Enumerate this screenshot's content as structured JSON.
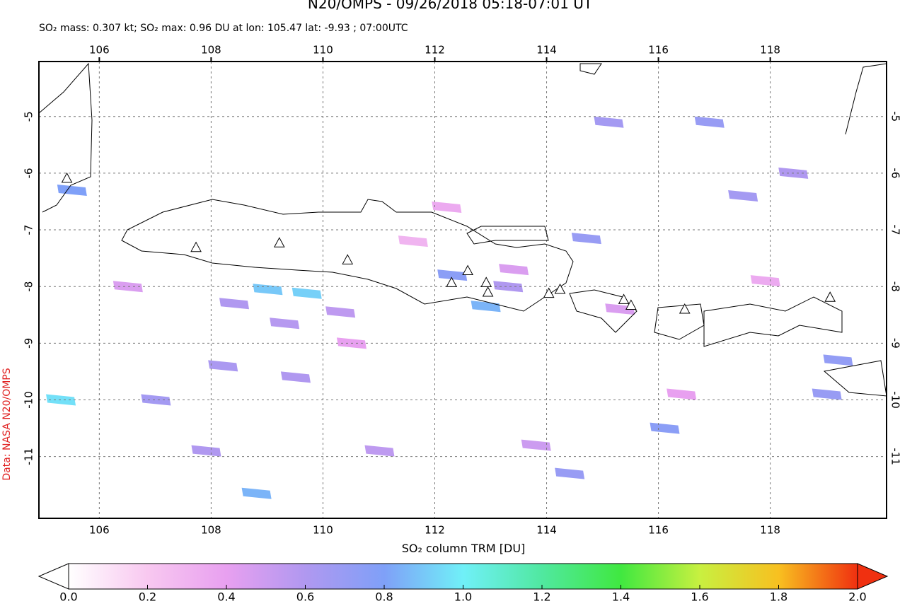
{
  "chart_data": {
    "type": "map",
    "title": "N20/OMPS - 09/26/2018 05:18-07:01 UT",
    "subtitle": "SO₂ mass: 0.307 kt; SO₂ max: 0.96 DU at lon: 105.47 lat: -9.93 ; 07:00UTC",
    "credit": "Data: NASA N20/OMPS",
    "colorbar_label": "SO₂ column TRM [DU]",
    "xlim": [
      104.92,
      120.08
    ],
    "ylim": [
      -12.09,
      -4.03
    ],
    "xticks": [
      106,
      108,
      110,
      112,
      114,
      116,
      118
    ],
    "yticks": [
      -5,
      -6,
      -7,
      -8,
      -9,
      -10,
      -11
    ],
    "grid": true,
    "clim": [
      0,
      2
    ],
    "colors": [
      "#ffffff",
      "#f8c8f0",
      "#e8a0f0",
      "#b098f0",
      "#7fa0f8",
      "#70f0f8",
      "#50e8a0",
      "#40e840",
      "#c8f040",
      "#f8c020",
      "#f03010"
    ],
    "cticks": [
      {
        "value": 0,
        "label": "0.0"
      },
      {
        "value": 0.2,
        "label": "0.2"
      },
      {
        "value": 0.4,
        "label": "0.4"
      },
      {
        "value": 0.6,
        "label": "0.6"
      },
      {
        "value": 0.8,
        "label": "0.8"
      },
      {
        "value": 1,
        "label": "1.0"
      },
      {
        "value": 1.2,
        "label": "1.2"
      },
      {
        "value": 1.4,
        "label": "1.4"
      },
      {
        "value": 1.6,
        "label": "1.6"
      },
      {
        "value": 1.8,
        "label": "1.8"
      },
      {
        "value": 2,
        "label": "2.0"
      }
    ],
    "pixels": {
      "lon": [
        109.0,
        109.7,
        105.5,
        105.3,
        112.3,
        112.9,
        113.3,
        114.7,
        115.1,
        116.1,
        116.9,
        117.5,
        118.4,
        119.2,
        119.0,
        108.2,
        107.9,
        109.5,
        110.3,
        108.4,
        111.0,
        109.3,
        108.8,
        114.4,
        113.8,
        115.3,
        110.5,
        112.2,
        113.4,
        117.9,
        107.0,
        106.5,
        111.6,
        116.4
      ],
      "lat": [
        -8.05,
        -8.12,
        -6.3,
        -10.0,
        -7.8,
        -8.35,
        -8.0,
        -7.15,
        -5.1,
        -10.5,
        -5.1,
        -6.4,
        -6.0,
        -9.3,
        -9.9,
        -9.4,
        -10.9,
        -9.6,
        -8.45,
        -8.3,
        -10.9,
        -8.65,
        -11.65,
        -11.3,
        -10.8,
        -8.4,
        -9.0,
        -6.6,
        -7.7,
        -7.9,
        -10.0,
        -8.0,
        -7.2,
        -9.9
      ],
      "values": [
        0.9,
        0.92,
        0.8,
        0.96,
        0.75,
        0.85,
        0.6,
        0.7,
        0.65,
        0.75,
        0.7,
        0.65,
        0.6,
        0.72,
        0.7,
        0.62,
        0.6,
        0.6,
        0.55,
        0.6,
        0.55,
        0.58,
        0.85,
        0.7,
        0.5,
        0.45,
        0.4,
        0.35,
        0.45,
        0.35,
        0.65,
        0.45,
        0.3,
        0.4
      ]
    },
    "volcanoes": {
      "lon": [
        105.42,
        107.73,
        109.22,
        110.44,
        112.3,
        112.59,
        112.92,
        112.95,
        114.04,
        114.24,
        115.38,
        115.51,
        116.47,
        119.07
      ],
      "lat": [
        -6.1,
        -7.32,
        -7.24,
        -7.54,
        -7.94,
        -7.73,
        -7.94,
        -8.11,
        -8.13,
        -8.06,
        -8.24,
        -8.34,
        -8.41,
        -8.2
      ]
    }
  }
}
